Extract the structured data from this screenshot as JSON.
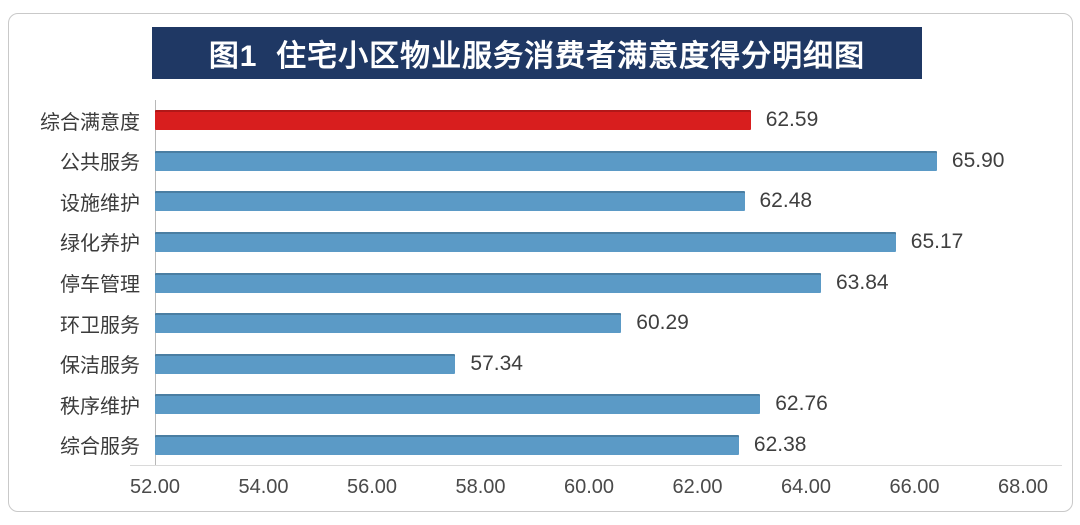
{
  "title": "图1  住宅小区物业服务消费者满意度得分明细图",
  "colors": {
    "title_background": "#1f3864",
    "title_text": "#ffffff",
    "bar_default": "#5b9ac6",
    "bar_highlight": "#d81e1e"
  },
  "chart_data": {
    "type": "bar",
    "orientation": "horizontal",
    "title": "图1  住宅小区物业服务消费者满意度得分明细图",
    "categories": [
      "综合满意度",
      "公共服务",
      "设施维护",
      "绿化养护",
      "停车管理",
      "环卫服务",
      "保洁服务",
      "秩序维护",
      "综合服务"
    ],
    "values": [
      62.59,
      65.9,
      62.48,
      65.17,
      63.84,
      60.29,
      57.34,
      62.76,
      62.38
    ],
    "value_labels": [
      "62.59",
      "65.90",
      "62.48",
      "65.17",
      "63.84",
      "60.29",
      "57.34",
      "62.76",
      "62.38"
    ],
    "highlight_index": 0,
    "x_ticks": [
      "52.00",
      "54.00",
      "56.00",
      "58.00",
      "60.00",
      "62.00",
      "64.00",
      "66.00",
      "68.00"
    ],
    "xlim": [
      52,
      68
    ],
    "grid": false,
    "legend_position": "none"
  }
}
